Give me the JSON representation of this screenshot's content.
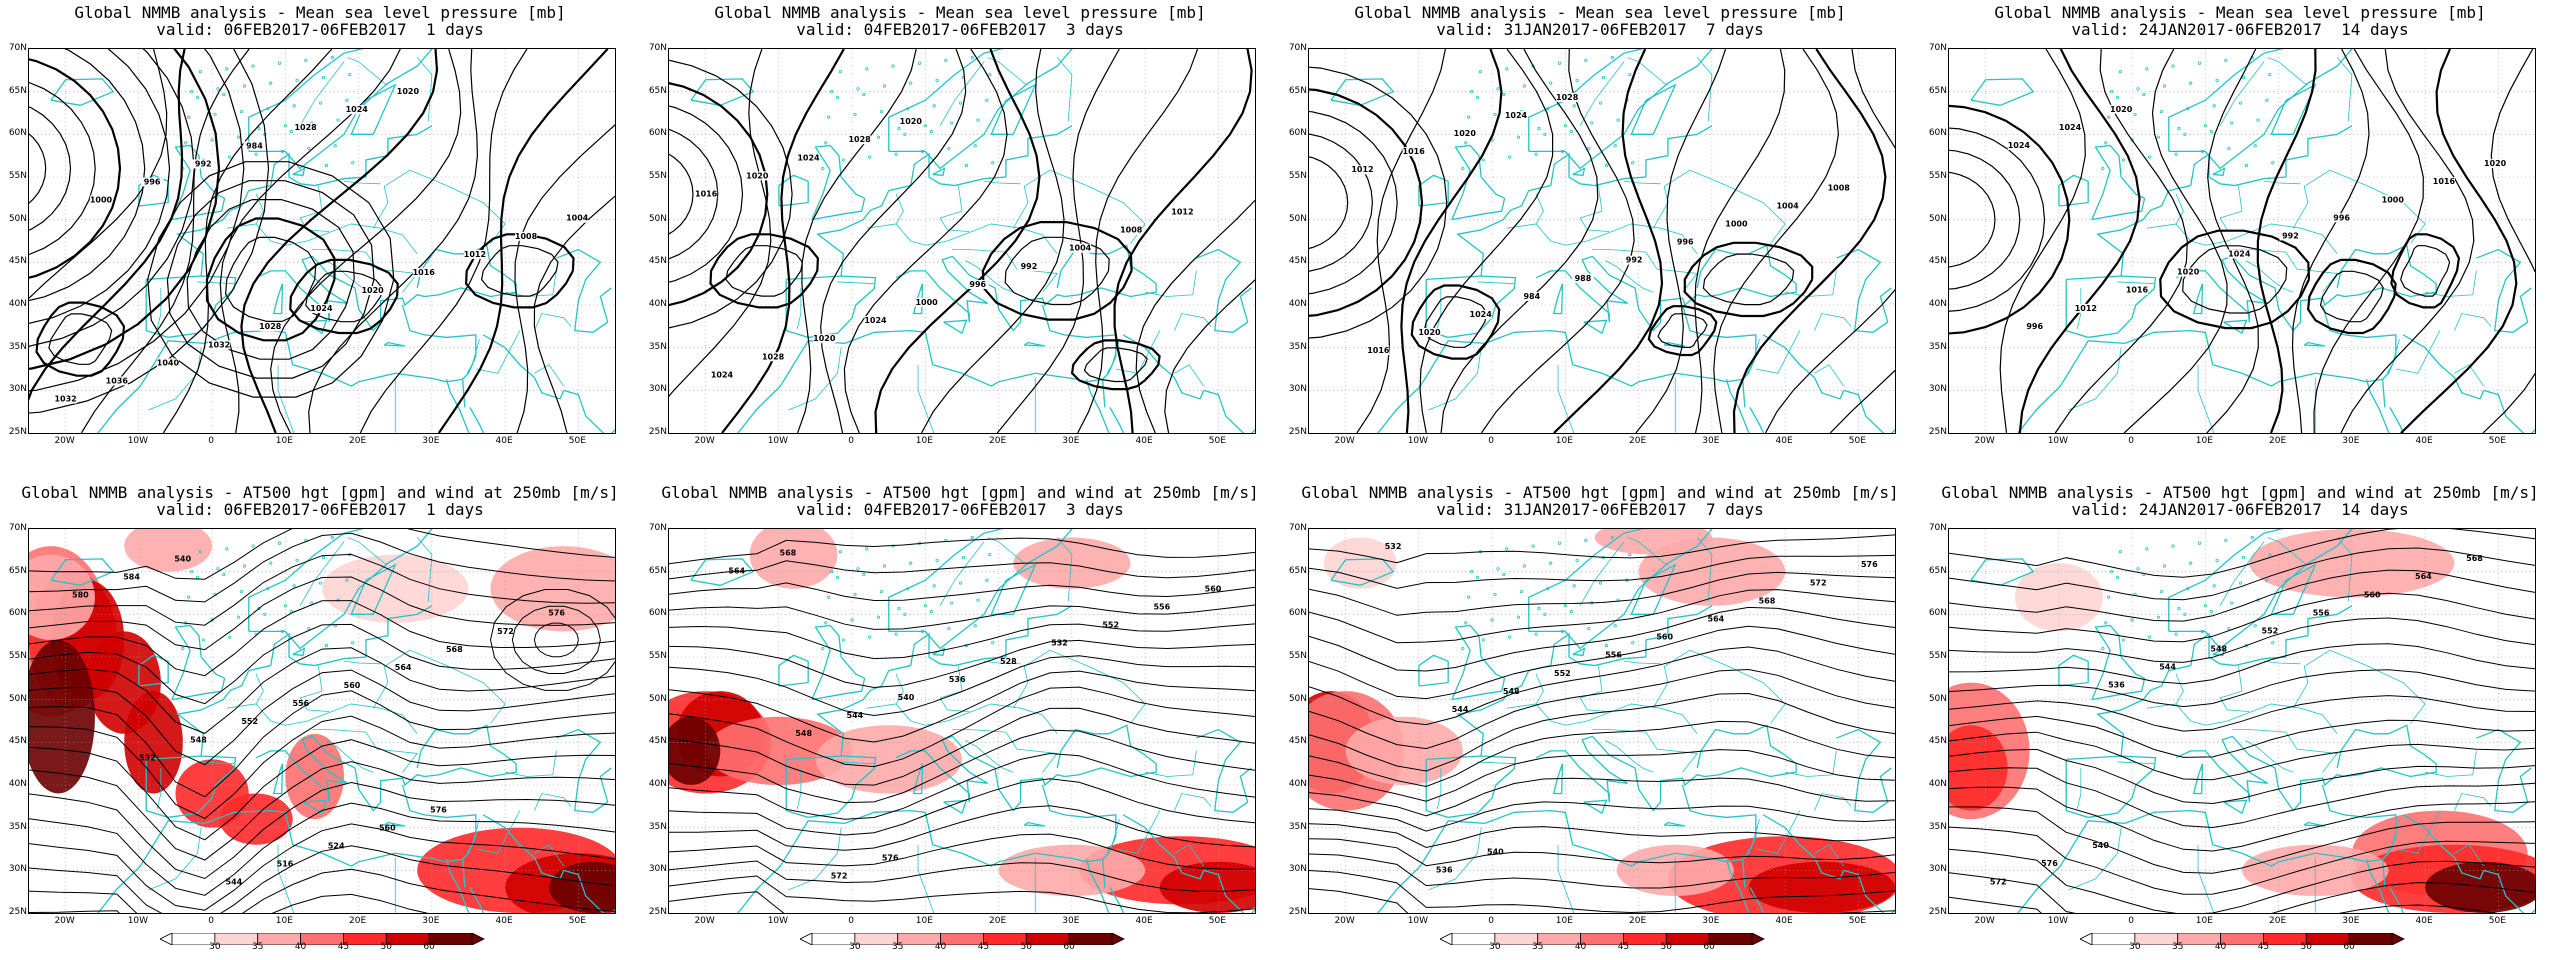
{
  "top_title_prefix": "Global NMMB analysis - Mean sea level pressure [mb]",
  "bottom_title_prefix": "Global NMMB analysis - AT500 hgt [gpm] and wind at 250mb [m/s]",
  "panels": [
    {
      "valid": "valid: 06FEB2017-06FEB2017  1 days"
    },
    {
      "valid": "valid: 04FEB2017-06FEB2017  3 days"
    },
    {
      "valid": "valid: 31JAN2017-06FEB2017  7 days"
    },
    {
      "valid": "valid: 24JAN2017-06FEB2017  14 days"
    }
  ],
  "lat_labels": [
    "70N",
    "65N",
    "60N",
    "55N",
    "50N",
    "45N",
    "40N",
    "35N",
    "30N",
    "25N"
  ],
  "lon_labels": [
    "20W",
    "10W",
    "0",
    "10E",
    "20E",
    "30E",
    "40E",
    "50E"
  ],
  "colorbar_labels": [
    "30",
    "35",
    "40",
    "45",
    "50",
    "60"
  ],
  "colors": {
    "coast": "#22c4c8",
    "contour": "#000000",
    "wind_levels": [
      "#ffd4d4",
      "#ffaaaa",
      "#ff7070",
      "#ff2a2a",
      "#d00000",
      "#6a0000"
    ]
  },
  "mslp_labels": [
    [
      "1032",
      "1036",
      "1040",
      "1032",
      "1028",
      "1024",
      "1020",
      "1016",
      "1012",
      "1008",
      "1004",
      "1000",
      "996",
      "992",
      "984",
      "1028",
      "1024",
      "1020"
    ],
    [
      "1024",
      "1028",
      "1020",
      "1024",
      "1000",
      "996",
      "992",
      "1004",
      "1008",
      "1012",
      "1016",
      "1020",
      "1024",
      "1028",
      "1020"
    ],
    [
      "1016",
      "1020",
      "1024",
      "984",
      "988",
      "992",
      "996",
      "1000",
      "1004",
      "1008",
      "1012",
      "1016",
      "1020",
      "1024",
      "1028"
    ],
    [
      "996",
      "1012",
      "1016",
      "1020",
      "1024",
      "992",
      "996",
      "1000",
      "1016",
      "1020",
      "1024",
      "1024",
      "1020"
    ]
  ],
  "z500_labels": [
    [
      "532",
      "548",
      "552",
      "556",
      "560",
      "564",
      "568",
      "572",
      "576",
      "580",
      "584",
      "540",
      "544",
      "516",
      "524",
      "560",
      "576"
    ],
    [
      "548",
      "544",
      "540",
      "536",
      "528",
      "532",
      "552",
      "556",
      "560",
      "564",
      "568",
      "572",
      "576"
    ],
    [
      "544",
      "548",
      "552",
      "556",
      "560",
      "564",
      "568",
      "572",
      "576",
      "532",
      "536",
      "540"
    ],
    [
      "536",
      "544",
      "548",
      "552",
      "556",
      "560",
      "564",
      "568",
      "572",
      "576",
      "540"
    ]
  ]
}
